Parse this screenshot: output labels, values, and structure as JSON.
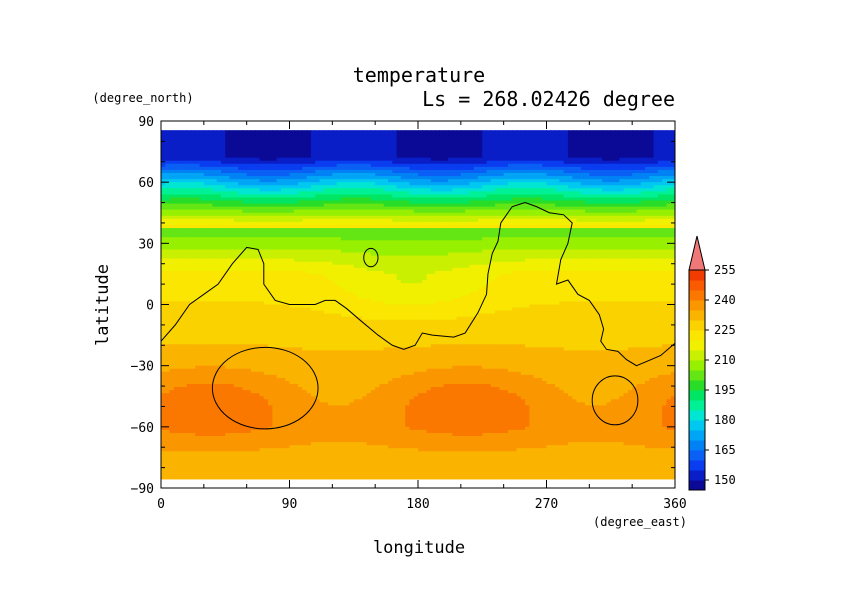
{
  "chart_data": {
    "type": "heatmap",
    "title": "temperature",
    "subtitle": "Ls = 268.02426 degree",
    "xlabel": "longitude",
    "ylabel": "latitude",
    "x_units": "(degree_east)",
    "y_units": "(degree_north)",
    "xlim": [
      0,
      360
    ],
    "ylim": [
      -90,
      90
    ],
    "x_ticks": [
      "0",
      "90",
      "180",
      "270",
      "360"
    ],
    "y_ticks": [
      "90",
      "60",
      "30",
      "0",
      "−30",
      "−60",
      "−90"
    ],
    "colorbar": {
      "levels": [
        145,
        150,
        155,
        160,
        165,
        170,
        175,
        180,
        185,
        190,
        195,
        200,
        205,
        210,
        215,
        220,
        225,
        230,
        235,
        240,
        245,
        250,
        255,
        260
      ],
      "labels": [
        "150",
        "165",
        "180",
        "195",
        "210",
        "225",
        "240",
        "255"
      ],
      "label_values": [
        150,
        165,
        180,
        195,
        210,
        225,
        240,
        255
      ],
      "colors": [
        "#0a0a96",
        "#0a1ec8",
        "#0a3cf0",
        "#0a5ff5",
        "#0082f5",
        "#00a5f5",
        "#00c8f0",
        "#00e6d2",
        "#00f096",
        "#00e664",
        "#28dc28",
        "#64e614",
        "#96f000",
        "#c8f000",
        "#f0f000",
        "#fae600",
        "#fad200",
        "#fab400",
        "#fa9600",
        "#fa7800",
        "#fa5a00",
        "#f03c00",
        "#e61e1e",
        "#f07878"
      ]
    },
    "grid": false
  }
}
